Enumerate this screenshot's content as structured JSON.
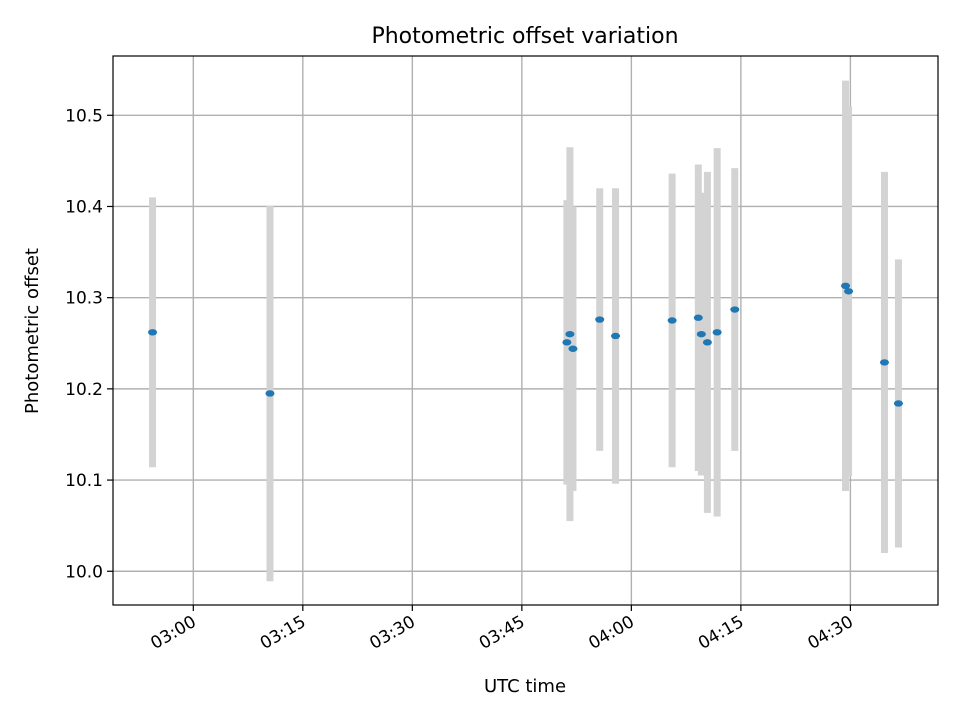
{
  "chart_data": {
    "type": "scatter",
    "title": "Photometric offset variation",
    "xlabel": "UTC time",
    "ylabel": "Photometric offset",
    "x_tick_labels": [
      "03:00",
      "03:15",
      "03:30",
      "03:45",
      "04:00",
      "04:15",
      "04:30"
    ],
    "y_tick_labels": [
      "10.0",
      "10.1",
      "10.2",
      "10.3",
      "10.4",
      "10.5"
    ],
    "xlim": [
      "02:49",
      "04:42"
    ],
    "ylim": [
      9.963,
      10.565
    ],
    "grid": true,
    "colors": {
      "marker": "#1f77b4",
      "errorbar": "#d3d3d3",
      "grid": "#b0b0b0"
    },
    "series": [
      {
        "points": [
          {
            "x": "02:54:25",
            "y": 10.262,
            "err": 0.148
          },
          {
            "x": "03:10:30",
            "y": 10.195,
            "err": 0.206
          },
          {
            "x": "03:51:10",
            "y": 10.251,
            "err": 0.156
          },
          {
            "x": "03:51:35",
            "y": 10.26,
            "err": 0.205
          },
          {
            "x": "03:52:00",
            "y": 10.244,
            "err": 0.156
          },
          {
            "x": "03:55:40",
            "y": 10.276,
            "err": 0.144
          },
          {
            "x": "03:57:50",
            "y": 10.258,
            "err": 0.162
          },
          {
            "x": "04:05:35",
            "y": 10.275,
            "err": 0.161
          },
          {
            "x": "04:09:10",
            "y": 10.278,
            "err": 0.168
          },
          {
            "x": "04:09:35",
            "y": 10.26,
            "err": 0.155
          },
          {
            "x": "04:10:25",
            "y": 10.251,
            "err": 0.187
          },
          {
            "x": "04:11:45",
            "y": 10.262,
            "err": 0.202
          },
          {
            "x": "04:14:10",
            "y": 10.287,
            "err": 0.155
          },
          {
            "x": "04:29:20",
            "y": 10.313,
            "err": 0.225
          },
          {
            "x": "04:29:45",
            "y": 10.307,
            "err": 0.203
          },
          {
            "x": "04:34:40",
            "y": 10.229,
            "err": 0.209
          },
          {
            "x": "04:36:35",
            "y": 10.184,
            "err": 0.158
          }
        ]
      }
    ]
  }
}
